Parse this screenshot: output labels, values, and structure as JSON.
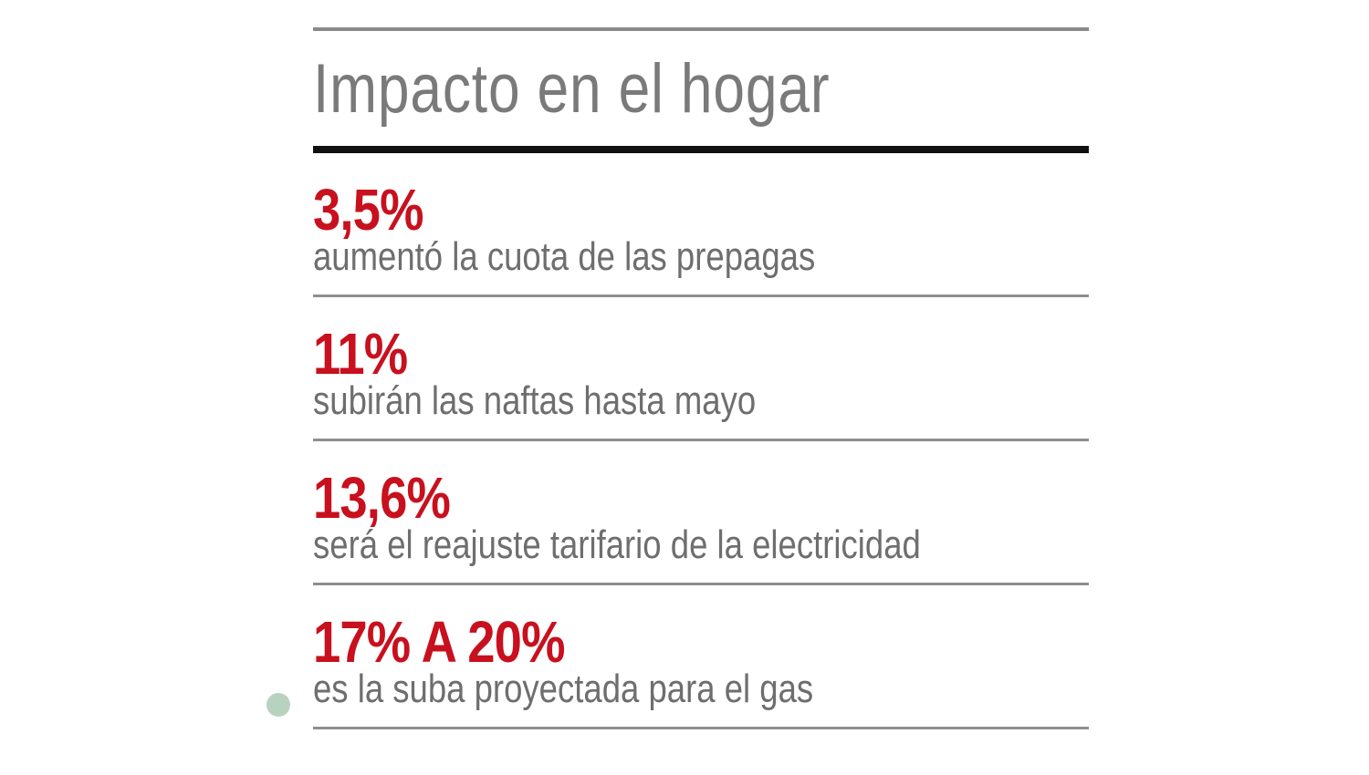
{
  "title": "Impacto en el hogar",
  "items": [
    {
      "value": "3,5%",
      "description": "aumentó la cuota de las prepagas"
    },
    {
      "value": "11%",
      "description": "subirán las naftas hasta mayo"
    },
    {
      "value": "13,6%",
      "description": "será el reajuste tarifario de la electricidad"
    },
    {
      "value": "17% A 20%",
      "description": "es la suba proyectada para el gas"
    }
  ],
  "colors": {
    "value": "#c8101e",
    "text": "#6e6e6e",
    "title": "#7a7a7a",
    "rule": "#111111"
  }
}
